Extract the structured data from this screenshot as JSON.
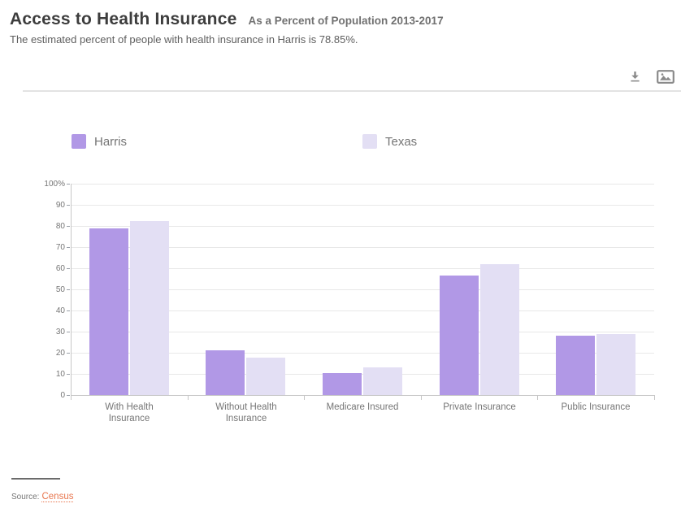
{
  "header": {
    "title": "Access to Health Insurance",
    "subtitle": "As a Percent of Population 2013-2017",
    "description": "The estimated percent of people with health insurance in Harris is 78.85%."
  },
  "toolbar": {
    "icons": [
      "download-icon",
      "image-icon"
    ]
  },
  "legend": [
    {
      "label": "Harris",
      "color": "#b198e6"
    },
    {
      "label": "Texas",
      "color": "#e3dff4"
    }
  ],
  "colors": {
    "harris_bar": "#b198e6",
    "texas_bar": "#e3dff4",
    "source_link": "#e8764e",
    "axis": "#c6c6c6",
    "grid": "#e8e8e8",
    "text_gray": "#757575"
  },
  "chart_data": {
    "type": "bar",
    "categories": [
      "With Health Insurance",
      "Without Health Insurance",
      "Medicare Insured",
      "Private Insurance",
      "Public Insurance"
    ],
    "series": [
      {
        "name": "Harris",
        "color": "#b198e6",
        "values": [
          78.85,
          21.15,
          10.2,
          56.4,
          27.9
        ]
      },
      {
        "name": "Texas",
        "color": "#e3dff4",
        "values": [
          82.3,
          17.7,
          12.9,
          61.8,
          28.7
        ]
      }
    ],
    "title": "Access to Health Insurance",
    "xlabel": "",
    "ylabel": "",
    "ylim": [
      0,
      100
    ],
    "yticks": [
      0,
      10,
      20,
      30,
      40,
      50,
      60,
      70,
      80,
      90,
      100
    ],
    "ytick_labels": [
      "0",
      "10",
      "20",
      "30",
      "40",
      "50",
      "60",
      "70",
      "80",
      "90",
      "100%"
    ],
    "grid": true,
    "legend_position": "top-left"
  },
  "footer": {
    "source_label": "Source:",
    "source_link": "Census"
  }
}
